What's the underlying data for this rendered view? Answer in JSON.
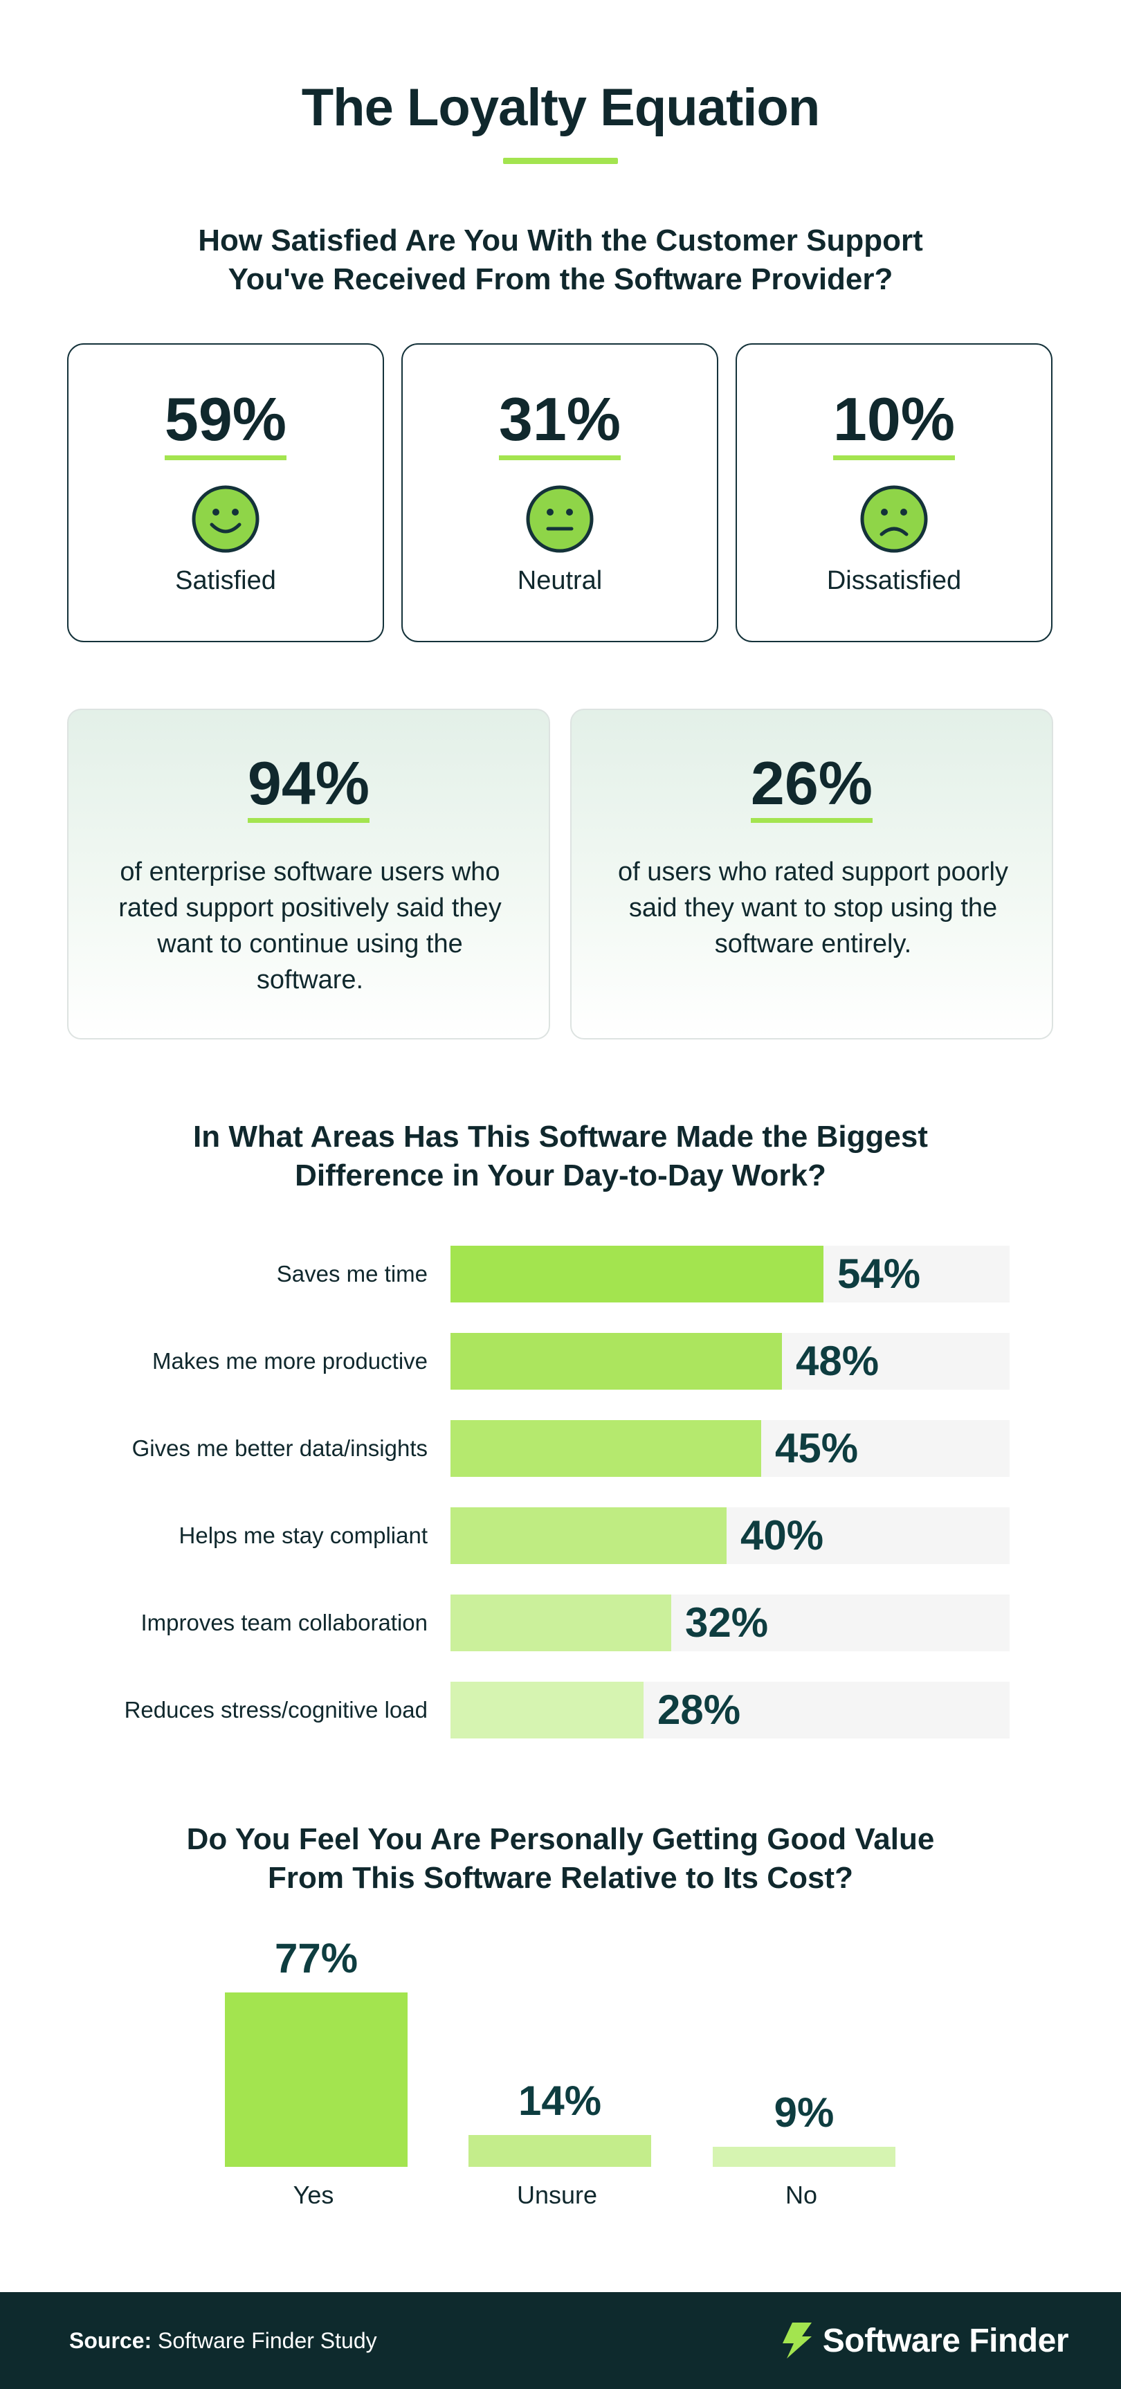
{
  "title": "The Loyalty Equation",
  "colors": {
    "accent": "#a3e44f",
    "dark": "#10282d",
    "value_text": "#0e3d40",
    "track": "#f5f5f5",
    "footer_bg": "#0e2a2d"
  },
  "satisfaction": {
    "title_line1": "How Satisfied Are You With the Customer Support",
    "title_line2": "You've Received From the Software Provider?",
    "cards": [
      {
        "value": "59%",
        "label": "Satisfied",
        "icon": "smiling-face-icon"
      },
      {
        "value": "31%",
        "label": "Neutral",
        "icon": "neutral-face-icon"
      },
      {
        "value": "10%",
        "label": "Dissatisfied",
        "icon": "frowning-face-icon"
      }
    ]
  },
  "stats": [
    {
      "value": "94%",
      "text": "of enterprise software users who rated support positively said they want to continue using the software."
    },
    {
      "value": "26%",
      "text": "of users who rated support poorly said they want to stop using the software entirely."
    }
  ],
  "areas": {
    "title_line1": "In What Areas Has This Software Made the Biggest",
    "title_line2": "Difference in Your Day-to-Day Work?"
  },
  "value_question": {
    "title_line1": "Do You Feel You Are Personally Getting Good Value",
    "title_line2": "From This Software Relative to Its Cost?"
  },
  "chart_data": [
    {
      "type": "bar",
      "orientation": "horizontal",
      "categories": [
        "Saves me time",
        "Makes me more productive",
        "Gives me better data/insights",
        "Helps me stay compliant",
        "Improves team collaboration",
        "Reduces stress/cognitive load"
      ],
      "values": [
        54,
        48,
        45,
        40,
        32,
        28
      ],
      "value_labels": [
        "54%",
        "48%",
        "45%",
        "40%",
        "32%",
        "28%"
      ],
      "unit": "%",
      "xlim": [
        0,
        81
      ],
      "bar_colors": [
        "#a3e44f",
        "#ace55e",
        "#b5e96e",
        "#bfec82",
        "#cbf09b",
        "#d6f4b1"
      ]
    },
    {
      "type": "bar",
      "orientation": "vertical",
      "categories": [
        "Yes",
        "Unsure",
        "No"
      ],
      "values": [
        77,
        14,
        9
      ],
      "value_labels": [
        "77%",
        "14%",
        "9%"
      ],
      "unit": "%",
      "bar_colors": [
        "#a3e44f",
        "#c4ed8b",
        "#d6f4b1"
      ]
    }
  ],
  "footer": {
    "source_label": "Source:",
    "source_text": "Software Finder Study",
    "brand": "Software Finder",
    "brand_icon": "lightning-logo-icon"
  }
}
